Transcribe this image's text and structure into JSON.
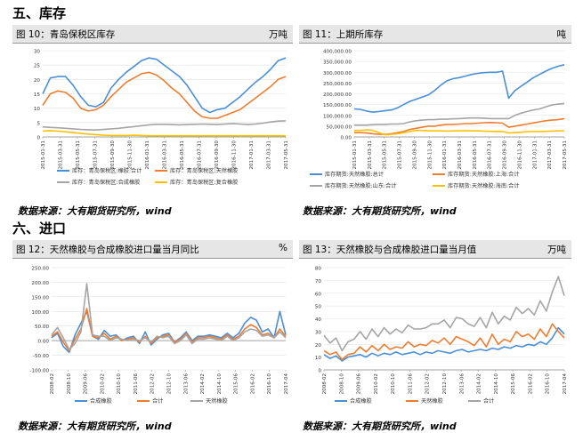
{
  "sections": {
    "s5": "五、库存",
    "s6": "六、进口"
  },
  "source_text": "数据来源：大有期货研究所，wind",
  "colors": {
    "blue": "#4a8fd6",
    "orange": "#ed7d31",
    "gray": "#a5a5a5",
    "yellow": "#ffc000"
  },
  "panels": {
    "p10": {
      "title": "图 10：青岛保税区库存",
      "unit": "万吨"
    },
    "p11": {
      "title": "图 11：上期所库存",
      "unit": "吨"
    },
    "p12": {
      "title": "图 12：天然橡胶与合成橡胶进口量当月同比",
      "unit": "%"
    },
    "p13": {
      "title": "图 13：天然橡胶与合成橡胶进口量当月值",
      "unit": "万吨"
    }
  },
  "chart_data": [
    {
      "id": "p10",
      "type": "line",
      "ylim": [
        0,
        30
      ],
      "yticks": [
        "0",
        "5",
        "10",
        "15",
        "20",
        "25",
        "30"
      ],
      "xticks": [
        "2015-01-31",
        "2015-03-31",
        "2015-05-31",
        "2015-07-31",
        "2015-09-30",
        "2015-11-30",
        "2016-01-31",
        "2016-03-31",
        "2016-05-31",
        "2016-07-31",
        "2016-09-30",
        "2016-11-30",
        "2017-01-31",
        "2017-03-31",
        "2017-05-31"
      ],
      "series": [
        {
          "name": "库存：青岛保税区:橡胶:合计",
          "color": "blue",
          "values": [
            15,
            20.5,
            21,
            21,
            18,
            14,
            11,
            10.5,
            12,
            17,
            20,
            22.5,
            24.5,
            26.5,
            27.5,
            27,
            25,
            23,
            21,
            18,
            14,
            10,
            8.5,
            9.5,
            10,
            12,
            14,
            16.5,
            19,
            21,
            23.5,
            26.5,
            27.5
          ]
        },
        {
          "name": "库存：青岛保税区:天然橡胶",
          "color": "orange",
          "values": [
            11,
            15,
            16,
            15.5,
            13.5,
            10,
            9,
            9.5,
            11,
            14,
            16.5,
            19,
            20.5,
            22,
            22.5,
            21.5,
            19.5,
            17,
            15,
            12,
            9,
            7,
            6.5,
            6.5,
            7.5,
            8.5,
            9.5,
            11.5,
            13.5,
            15.5,
            17.5,
            20,
            21
          ]
        },
        {
          "name": "库存：青岛保税区:合成橡胶",
          "color": "gray",
          "values": [
            3.5,
            3.3,
            3.2,
            3,
            2.8,
            2.6,
            2.5,
            2.4,
            2.6,
            2.8,
            3,
            3.3,
            3.6,
            3.9,
            4.2,
            4.4,
            4.4,
            4.3,
            4.2,
            4.3,
            4.4,
            4.5,
            4.4,
            4.3,
            4.5,
            4.6,
            4.5,
            4.3,
            4.5,
            4.8,
            5.2,
            5.5,
            5.6
          ]
        },
        {
          "name": "库存：青岛保税区:复合橡胶",
          "color": "yellow",
          "values": [
            2,
            2.2,
            2,
            1.8,
            1.5,
            1.2,
            1,
            0.8,
            0.6,
            0.5,
            0.5,
            0.5,
            0.6,
            0.5,
            0.4,
            0.4,
            0.4,
            0.4,
            0.4,
            0.4,
            0.4,
            0.4,
            0.4,
            0.4,
            0.4,
            0.4,
            0.4,
            0.4,
            0.4,
            0.4,
            0.4,
            0.4,
            0.4
          ]
        }
      ]
    },
    {
      "id": "p11",
      "type": "line",
      "ylim": [
        0,
        400000
      ],
      "yticks": [
        "0.00",
        "50,000.00",
        "100,000.00",
        "150,000.00",
        "200,000.00",
        "250,000.00",
        "300,000.00",
        "350,000.00",
        "400,000.00"
      ],
      "xticks": [
        "2015-01-31",
        "2015-03-31",
        "2015-05-31",
        "2015-07-31",
        "2015-09-30",
        "2015-11-30",
        "2016-01-31",
        "2016-03-31",
        "2016-05-31",
        "2016-07-31",
        "2016-09-30",
        "2016-11-30",
        "2017-01-31",
        "2017-03-31",
        "2017-05-31"
      ],
      "series": [
        {
          "name": "库存期货:天然橡胶:总计",
          "color": "blue",
          "values": [
            130000,
            128000,
            120000,
            115000,
            118000,
            122000,
            125000,
            135000,
            150000,
            165000,
            175000,
            185000,
            195000,
            215000,
            240000,
            260000,
            270000,
            275000,
            282000,
            290000,
            295000,
            298000,
            300000,
            300000,
            305000,
            180000,
            215000,
            235000,
            255000,
            275000,
            290000,
            305000,
            318000,
            328000,
            335000
          ]
        },
        {
          "name": "库存期货:天然橡胶:上海:合计",
          "color": "orange",
          "values": [
            20000,
            20000,
            18000,
            15000,
            12000,
            12000,
            15000,
            20000,
            25000,
            35000,
            40000,
            45000,
            50000,
            50000,
            55000,
            58000,
            58000,
            60000,
            62000,
            62000,
            64000,
            66000,
            67000,
            66000,
            64000,
            45000,
            50000,
            55000,
            60000,
            65000,
            70000,
            75000,
            78000,
            80000,
            85000
          ]
        },
        {
          "name": "库存期货:天然橡胶:山东:合计",
          "color": "gray",
          "values": [
            55000,
            55000,
            55000,
            57000,
            58000,
            58000,
            60000,
            60000,
            62000,
            70000,
            75000,
            78000,
            80000,
            80000,
            82000,
            82000,
            84000,
            85000,
            87000,
            88000,
            88000,
            87000,
            85000,
            85000,
            85000,
            85000,
            100000,
            110000,
            118000,
            125000,
            130000,
            140000,
            148000,
            152000,
            155000
          ]
        },
        {
          "name": "库存期货:天然橡胶:海南:合计",
          "color": "yellow",
          "values": [
            30000,
            30000,
            32000,
            30000,
            20000,
            10000,
            12000,
            15000,
            20000,
            25000,
            30000,
            30000,
            28000,
            28000,
            28000,
            27000,
            28000,
            28000,
            29000,
            28000,
            28000,
            27000,
            26000,
            25000,
            25000,
            18000,
            20000,
            22000,
            24000,
            25000,
            25000,
            26000,
            27000,
            28000,
            28000
          ]
        }
      ]
    },
    {
      "id": "p12",
      "type": "line",
      "ylim": [
        -100,
        250
      ],
      "yticks": [
        "-100.00",
        "-50.00",
        "0.00",
        "50.00",
        "100.00",
        "150.00",
        "200.00",
        "250.00"
      ],
      "xticks": [
        "2008-02",
        "2008-10",
        "2009-06",
        "2010-02",
        "2010-10",
        "2011-06",
        "2012-02",
        "2012-10",
        "2013-06",
        "2014-02",
        "2014-10",
        "2015-06",
        "2016-02",
        "2016-10",
        "2017-04"
      ],
      "series": [
        {
          "name": "合成橡胶",
          "color": "blue",
          "values": [
            10,
            25,
            -20,
            -40,
            20,
            60,
            100,
            15,
            5,
            35,
            15,
            20,
            0,
            10,
            15,
            -10,
            30,
            -15,
            5,
            20,
            25,
            -5,
            10,
            30,
            0,
            15,
            15,
            20,
            15,
            10,
            25,
            10,
            25,
            60,
            80,
            70,
            30,
            40,
            10,
            100,
            20
          ]
        },
        {
          "name": "合计",
          "color": "orange",
          "values": [
            15,
            30,
            -5,
            -35,
            5,
            40,
            110,
            15,
            10,
            25,
            5,
            15,
            0,
            5,
            10,
            -5,
            15,
            -10,
            10,
            15,
            20,
            -5,
            5,
            25,
            -5,
            10,
            10,
            15,
            10,
            5,
            20,
            5,
            15,
            40,
            55,
            45,
            20,
            25,
            10,
            40,
            15
          ]
        },
        {
          "name": "天然橡胶",
          "color": "gray",
          "values": [
            20,
            45,
            10,
            -30,
            -10,
            30,
            195,
            20,
            15,
            15,
            0,
            10,
            5,
            0,
            5,
            0,
            10,
            -5,
            15,
            10,
            15,
            -10,
            0,
            20,
            -10,
            5,
            5,
            10,
            5,
            0,
            15,
            0,
            10,
            30,
            40,
            35,
            15,
            20,
            10,
            30,
            10
          ]
        }
      ]
    },
    {
      "id": "p13",
      "type": "line",
      "ylim": [
        0,
        80
      ],
      "yticks": [
        "0",
        "10",
        "20",
        "30",
        "40",
        "50",
        "60",
        "70",
        "80"
      ],
      "xticks": [
        "2008-02",
        "2008-10",
        "2009-06",
        "2010-02",
        "2010-10",
        "2011-06",
        "2012-02",
        "2012-10",
        "2013-06",
        "2014-02",
        "2014-10",
        "2015-06",
        "2016-02",
        "2016-10",
        "2017-04"
      ],
      "series": [
        {
          "name": "合成橡胶",
          "color": "blue",
          "values": [
            12,
            9,
            11,
            7,
            10,
            11,
            12,
            10,
            13,
            11,
            13,
            12,
            14,
            12,
            13,
            14,
            12,
            14,
            13,
            15,
            14,
            13,
            15,
            16,
            14,
            15,
            16,
            15,
            17,
            16,
            18,
            17,
            19,
            18,
            20,
            19,
            22,
            20,
            25,
            33,
            28
          ]
        },
        {
          "name": "天然橡胶",
          "color": "orange",
          "values": [
            15,
            12,
            14,
            8,
            12,
            13,
            18,
            14,
            19,
            15,
            20,
            16,
            18,
            17,
            22,
            18,
            20,
            19,
            23,
            21,
            25,
            20,
            26,
            24,
            22,
            19,
            25,
            18,
            28,
            20,
            24,
            22,
            30,
            26,
            28,
            24,
            32,
            26,
            36,
            30,
            25
          ]
        },
        {
          "name": "合计",
          "color": "gray",
          "values": [
            27,
            21,
            25,
            15,
            22,
            24,
            30,
            24,
            32,
            26,
            33,
            28,
            32,
            29,
            35,
            32,
            32,
            33,
            36,
            36,
            39,
            33,
            41,
            40,
            36,
            34,
            41,
            33,
            45,
            36,
            42,
            39,
            49,
            44,
            48,
            43,
            54,
            46,
            61,
            73,
            58
          ]
        }
      ]
    }
  ]
}
